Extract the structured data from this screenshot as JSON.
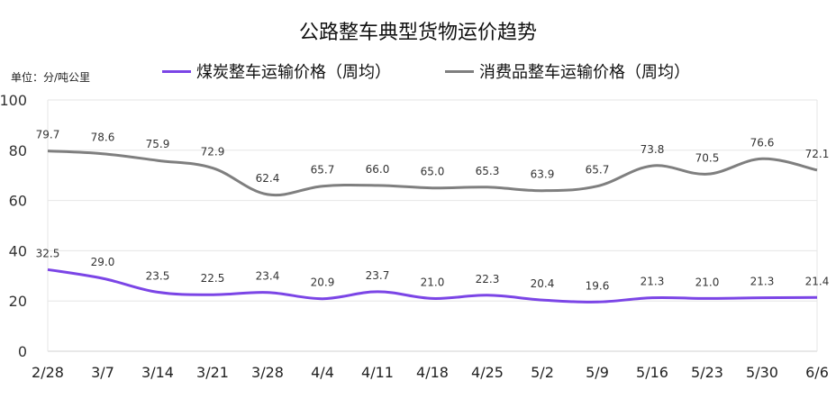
{
  "title": "公路整车典型货物运价趋势",
  "unit_label": "单位：分/吨公里",
  "colors": {
    "coal": "#7B45E6",
    "consumer": "#7F7F7F",
    "grid": "#E6E6E6",
    "axis": "#D0D0D0"
  },
  "chart_data": {
    "type": "line",
    "title": "公路整车典型货物运价趋势",
    "ylabel": "",
    "xlabel": "",
    "ylim": [
      0,
      100
    ],
    "yticks": [
      0,
      20,
      40,
      60,
      80,
      100
    ],
    "grid": true,
    "legend_position": "top",
    "categories": [
      "2/28",
      "3/7",
      "3/14",
      "3/21",
      "3/28",
      "4/4",
      "4/11",
      "4/18",
      "4/25",
      "5/2",
      "5/9",
      "5/16",
      "5/23",
      "5/30",
      "6/6"
    ],
    "series": [
      {
        "name": "煤炭整车运输价格（周均）",
        "color": "#7B45E6",
        "values": [
          32.5,
          29.0,
          23.5,
          22.5,
          23.4,
          20.9,
          23.7,
          21.0,
          22.3,
          20.4,
          19.6,
          21.3,
          21.0,
          21.3,
          21.4
        ],
        "labels": [
          "32.5",
          "29.0",
          "23.5",
          "22.5",
          "23.4",
          "20.9",
          "23.7",
          "21.0",
          "22.3",
          "20.4",
          "19.6",
          "21.3",
          "21.0",
          "21.3",
          "21.4"
        ]
      },
      {
        "name": "消费品整车运输价格（周均）",
        "color": "#7F7F7F",
        "values": [
          79.7,
          78.6,
          75.9,
          72.9,
          62.4,
          65.7,
          66.0,
          65.0,
          65.3,
          63.9,
          65.7,
          73.8,
          70.5,
          76.6,
          72.1
        ],
        "labels": [
          "79.7",
          "78.6",
          "75.9",
          "72.9",
          "62.4",
          "65.7",
          "66.0",
          "65.0",
          "65.3",
          "63.9",
          "65.7",
          "73.8",
          "70.5",
          "76.6",
          "72.1"
        ]
      }
    ]
  }
}
